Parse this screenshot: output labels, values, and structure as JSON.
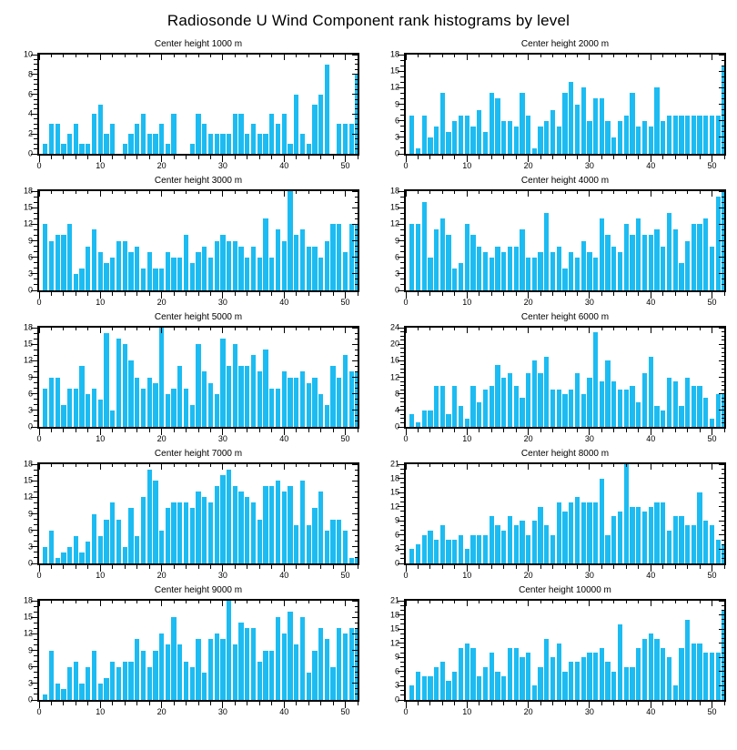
{
  "page_title": "Radiosonde U Wind Component rank histograms by level",
  "colors": {
    "bar": "#1cbcf2",
    "axis": "#000000",
    "background": "#ffffff"
  },
  "chart_data": [
    {
      "type": "bar",
      "title": "Center height 1000 m",
      "xlim": [
        0,
        52
      ],
      "ylim": [
        0,
        10
      ],
      "ytick_step": 2,
      "x_major_step": 10,
      "x_minor_step": 2,
      "x_major_ticks": [
        0,
        10,
        20,
        30,
        40,
        50
      ],
      "grid": false,
      "legend": false,
      "values": [
        1,
        3,
        3,
        1,
        2,
        3,
        1,
        1,
        4,
        5,
        2,
        3,
        0,
        1,
        2,
        3,
        4,
        2,
        2,
        3,
        1,
        4,
        0,
        0,
        1,
        4,
        3,
        2,
        2,
        2,
        2,
        4,
        4,
        2,
        3,
        2,
        2,
        4,
        3,
        4,
        1,
        6,
        2,
        1,
        5,
        6,
        9,
        0,
        3,
        3,
        3,
        8
      ]
    },
    {
      "type": "bar",
      "title": "Center height 2000 m",
      "xlim": [
        0,
        52
      ],
      "ylim": [
        0,
        18
      ],
      "ytick_step": 3,
      "x_major_step": 10,
      "x_minor_step": 2,
      "x_major_ticks": [
        0,
        10,
        20,
        30,
        40,
        50
      ],
      "grid": false,
      "legend": false,
      "values": [
        7,
        1,
        7,
        3,
        5,
        11,
        4,
        6,
        7,
        7,
        5,
        8,
        4,
        11,
        10,
        6,
        6,
        5,
        11,
        7,
        1,
        5,
        6,
        8,
        5,
        11,
        13,
        9,
        12,
        6,
        10,
        10,
        6,
        3,
        6,
        7,
        11,
        5,
        6,
        5,
        12,
        6,
        7,
        7,
        7,
        7,
        7,
        7,
        7,
        7,
        7,
        16
      ]
    },
    {
      "type": "bar",
      "title": "Center height 3000 m",
      "xlim": [
        0,
        52
      ],
      "ylim": [
        0,
        18
      ],
      "ytick_step": 3,
      "x_major_step": 10,
      "x_minor_step": 2,
      "x_major_ticks": [
        0,
        10,
        20,
        30,
        40,
        50
      ],
      "grid": false,
      "legend": false,
      "values": [
        12,
        9,
        10,
        10,
        12,
        3,
        4,
        8,
        11,
        7,
        5,
        6,
        9,
        9,
        7,
        8,
        4,
        7,
        4,
        4,
        7,
        6,
        6,
        10,
        5,
        7,
        8,
        6,
        9,
        10,
        9,
        9,
        8,
        6,
        8,
        6,
        13,
        6,
        11,
        9,
        18,
        10,
        11,
        8,
        8,
        6,
        9,
        12,
        12,
        7,
        12,
        12
      ]
    },
    {
      "type": "bar",
      "title": "Center height 4000 m",
      "xlim": [
        0,
        52
      ],
      "ylim": [
        0,
        18
      ],
      "ytick_step": 3,
      "x_major_step": 10,
      "x_minor_step": 2,
      "x_major_ticks": [
        0,
        10,
        20,
        30,
        40,
        50
      ],
      "grid": false,
      "legend": false,
      "values": [
        12,
        12,
        16,
        6,
        11,
        13,
        10,
        4,
        5,
        12,
        10,
        8,
        7,
        6,
        8,
        7,
        8,
        8,
        11,
        6,
        6,
        7,
        14,
        7,
        8,
        4,
        7,
        6,
        9,
        7,
        6,
        13,
        10,
        8,
        7,
        12,
        10,
        13,
        10,
        10,
        11,
        8,
        14,
        11,
        5,
        9,
        12,
        12,
        13,
        8,
        17,
        18
      ]
    },
    {
      "type": "bar",
      "title": "Center height 5000 m",
      "xlim": [
        0,
        52
      ],
      "ylim": [
        0,
        18
      ],
      "ytick_step": 3,
      "x_major_step": 10,
      "x_minor_step": 2,
      "x_major_ticks": [
        0,
        10,
        20,
        30,
        40,
        50
      ],
      "grid": false,
      "legend": false,
      "values": [
        7,
        9,
        9,
        4,
        7,
        7,
        11,
        6,
        7,
        5,
        17,
        3,
        16,
        15,
        12,
        9,
        7,
        9,
        8,
        18,
        6,
        7,
        11,
        7,
        4,
        15,
        10,
        8,
        6,
        16,
        11,
        15,
        11,
        11,
        13,
        10,
        14,
        7,
        7,
        10,
        9,
        9,
        10,
        8,
        9,
        6,
        4,
        11,
        9,
        13,
        10,
        10
      ]
    },
    {
      "type": "bar",
      "title": "Center height 6000 m",
      "xlim": [
        0,
        52
      ],
      "ylim": [
        0,
        24
      ],
      "ytick_step": 4,
      "x_major_step": 10,
      "x_minor_step": 2,
      "x_major_ticks": [
        0,
        10,
        20,
        30,
        40,
        50
      ],
      "grid": false,
      "legend": false,
      "values": [
        3,
        1,
        4,
        4,
        10,
        10,
        3,
        10,
        5,
        2,
        10,
        6,
        9,
        10,
        15,
        12,
        13,
        10,
        7,
        13,
        16,
        13,
        17,
        9,
        9,
        8,
        9,
        13,
        8,
        12,
        23,
        11,
        16,
        11,
        9,
        9,
        10,
        6,
        13,
        17,
        5,
        4,
        12,
        11,
        5,
        12,
        10,
        10,
        7,
        2,
        8,
        8
      ]
    },
    {
      "type": "bar",
      "title": "Center height 7000 m",
      "xlim": [
        0,
        52
      ],
      "ylim": [
        0,
        18
      ],
      "ytick_step": 3,
      "x_major_step": 10,
      "x_minor_step": 2,
      "x_major_ticks": [
        0,
        10,
        20,
        30,
        40,
        50
      ],
      "grid": false,
      "legend": false,
      "values": [
        3,
        6,
        1,
        2,
        3,
        5,
        2,
        4,
        9,
        5,
        8,
        11,
        8,
        3,
        10,
        5,
        12,
        17,
        15,
        6,
        10,
        11,
        11,
        11,
        10,
        13,
        12,
        11,
        14,
        16,
        17,
        14,
        13,
        12,
        11,
        8,
        14,
        14,
        15,
        13,
        14,
        7,
        15,
        7,
        10,
        13,
        6,
        8,
        8,
        6,
        1,
        1
      ]
    },
    {
      "type": "bar",
      "title": "Center height 8000 m",
      "xlim": [
        0,
        52
      ],
      "ylim": [
        0,
        21
      ],
      "ytick_step": 3,
      "x_major_step": 10,
      "x_minor_step": 2,
      "x_major_ticks": [
        0,
        10,
        20,
        30,
        40,
        50
      ],
      "grid": false,
      "legend": false,
      "values": [
        3,
        4,
        6,
        7,
        5,
        8,
        5,
        5,
        6,
        3,
        6,
        6,
        6,
        10,
        8,
        7,
        10,
        8,
        9,
        6,
        9,
        12,
        8,
        6,
        13,
        11,
        13,
        14,
        13,
        13,
        13,
        18,
        6,
        10,
        11,
        21,
        12,
        12,
        11,
        12,
        13,
        13,
        7,
        10,
        10,
        8,
        8,
        15,
        9,
        8,
        5,
        4
      ]
    },
    {
      "type": "bar",
      "title": "Center height 9000 m",
      "xlim": [
        0,
        52
      ],
      "ylim": [
        0,
        18
      ],
      "ytick_step": 3,
      "x_major_step": 10,
      "x_minor_step": 2,
      "x_major_ticks": [
        0,
        10,
        20,
        30,
        40,
        50
      ],
      "grid": false,
      "legend": false,
      "values": [
        1,
        9,
        3,
        2,
        6,
        7,
        3,
        6,
        9,
        3,
        4,
        7,
        6,
        7,
        7,
        11,
        9,
        6,
        9,
        12,
        10,
        15,
        10,
        7,
        6,
        11,
        5,
        11,
        12,
        11,
        18,
        10,
        14,
        13,
        13,
        7,
        9,
        9,
        15,
        12,
        16,
        10,
        15,
        5,
        9,
        13,
        11,
        6,
        13,
        12,
        13,
        13
      ]
    },
    {
      "type": "bar",
      "title": "Center height 10000 m",
      "xlim": [
        0,
        52
      ],
      "ylim": [
        0,
        21
      ],
      "ytick_step": 3,
      "x_major_step": 10,
      "x_minor_step": 2,
      "x_major_ticks": [
        0,
        10,
        20,
        30,
        40,
        50
      ],
      "grid": false,
      "legend": false,
      "values": [
        3,
        6,
        5,
        5,
        7,
        8,
        4,
        6,
        11,
        12,
        11,
        5,
        7,
        10,
        6,
        5,
        11,
        11,
        9,
        10,
        3,
        7,
        13,
        9,
        12,
        6,
        8,
        8,
        9,
        10,
        10,
        11,
        8,
        6,
        16,
        7,
        7,
        11,
        13,
        14,
        13,
        11,
        9,
        3,
        11,
        17,
        12,
        12,
        10,
        10,
        10,
        19
      ]
    }
  ]
}
